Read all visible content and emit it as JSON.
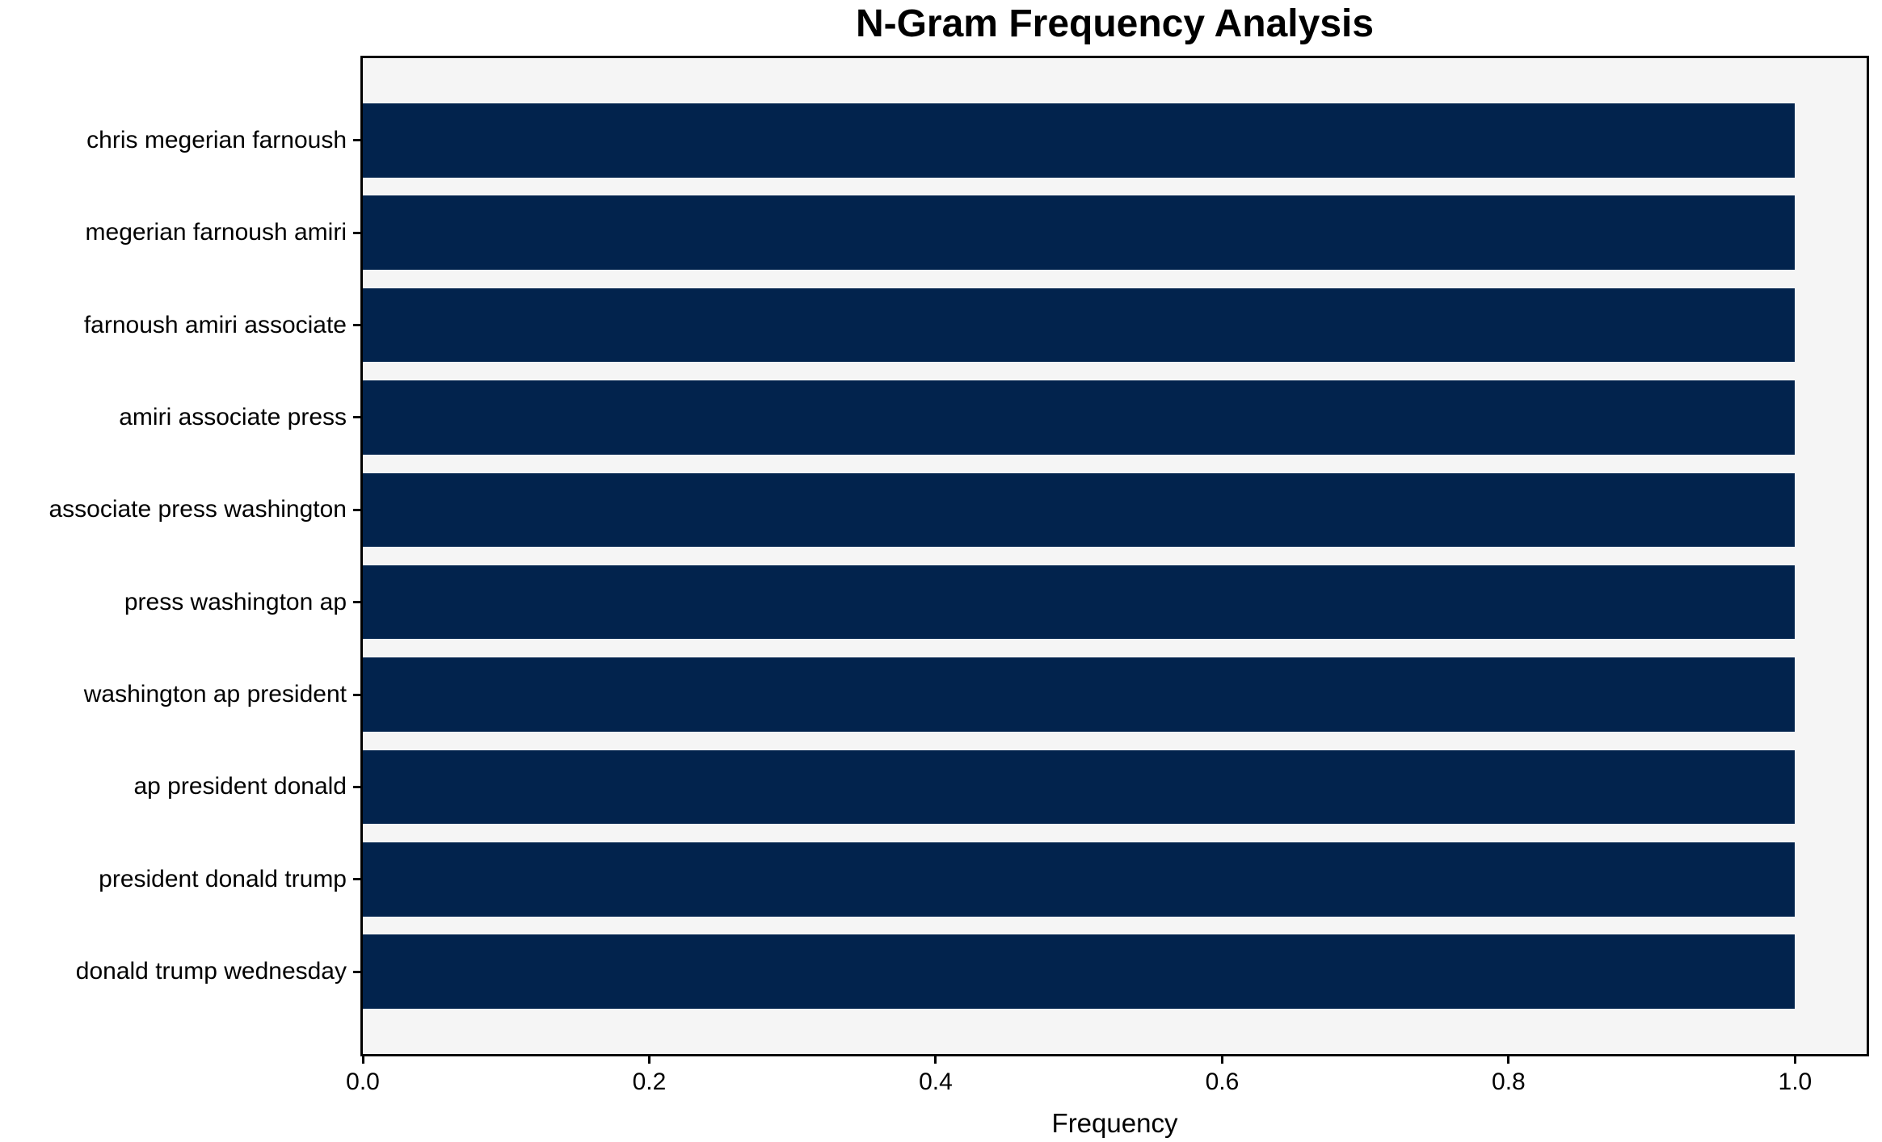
{
  "chart_data": {
    "type": "bar",
    "orientation": "horizontal",
    "title": "N-Gram Frequency Analysis",
    "xlabel": "Frequency",
    "ylabel": "",
    "categories": [
      "chris megerian farnoush",
      "megerian farnoush amiri",
      "farnoush amiri associate",
      "amiri associate press",
      "associate press washington",
      "press washington ap",
      "washington ap president",
      "ap president donald",
      "president donald trump",
      "donald trump wednesday"
    ],
    "values": [
      1.0,
      1.0,
      1.0,
      1.0,
      1.0,
      1.0,
      1.0,
      1.0,
      1.0,
      1.0
    ],
    "x_ticks": [
      "0.0",
      "0.2",
      "0.4",
      "0.6",
      "0.8",
      "1.0"
    ],
    "x_tick_values": [
      0.0,
      0.2,
      0.4,
      0.6,
      0.8,
      1.0
    ],
    "xlim": [
      0,
      1.05
    ],
    "grid": false,
    "legend": "none",
    "bar_color": "#02234d",
    "plot_background": "#f5f5f5",
    "spine_color": "#000000",
    "figure_background": "#ffffff"
  }
}
